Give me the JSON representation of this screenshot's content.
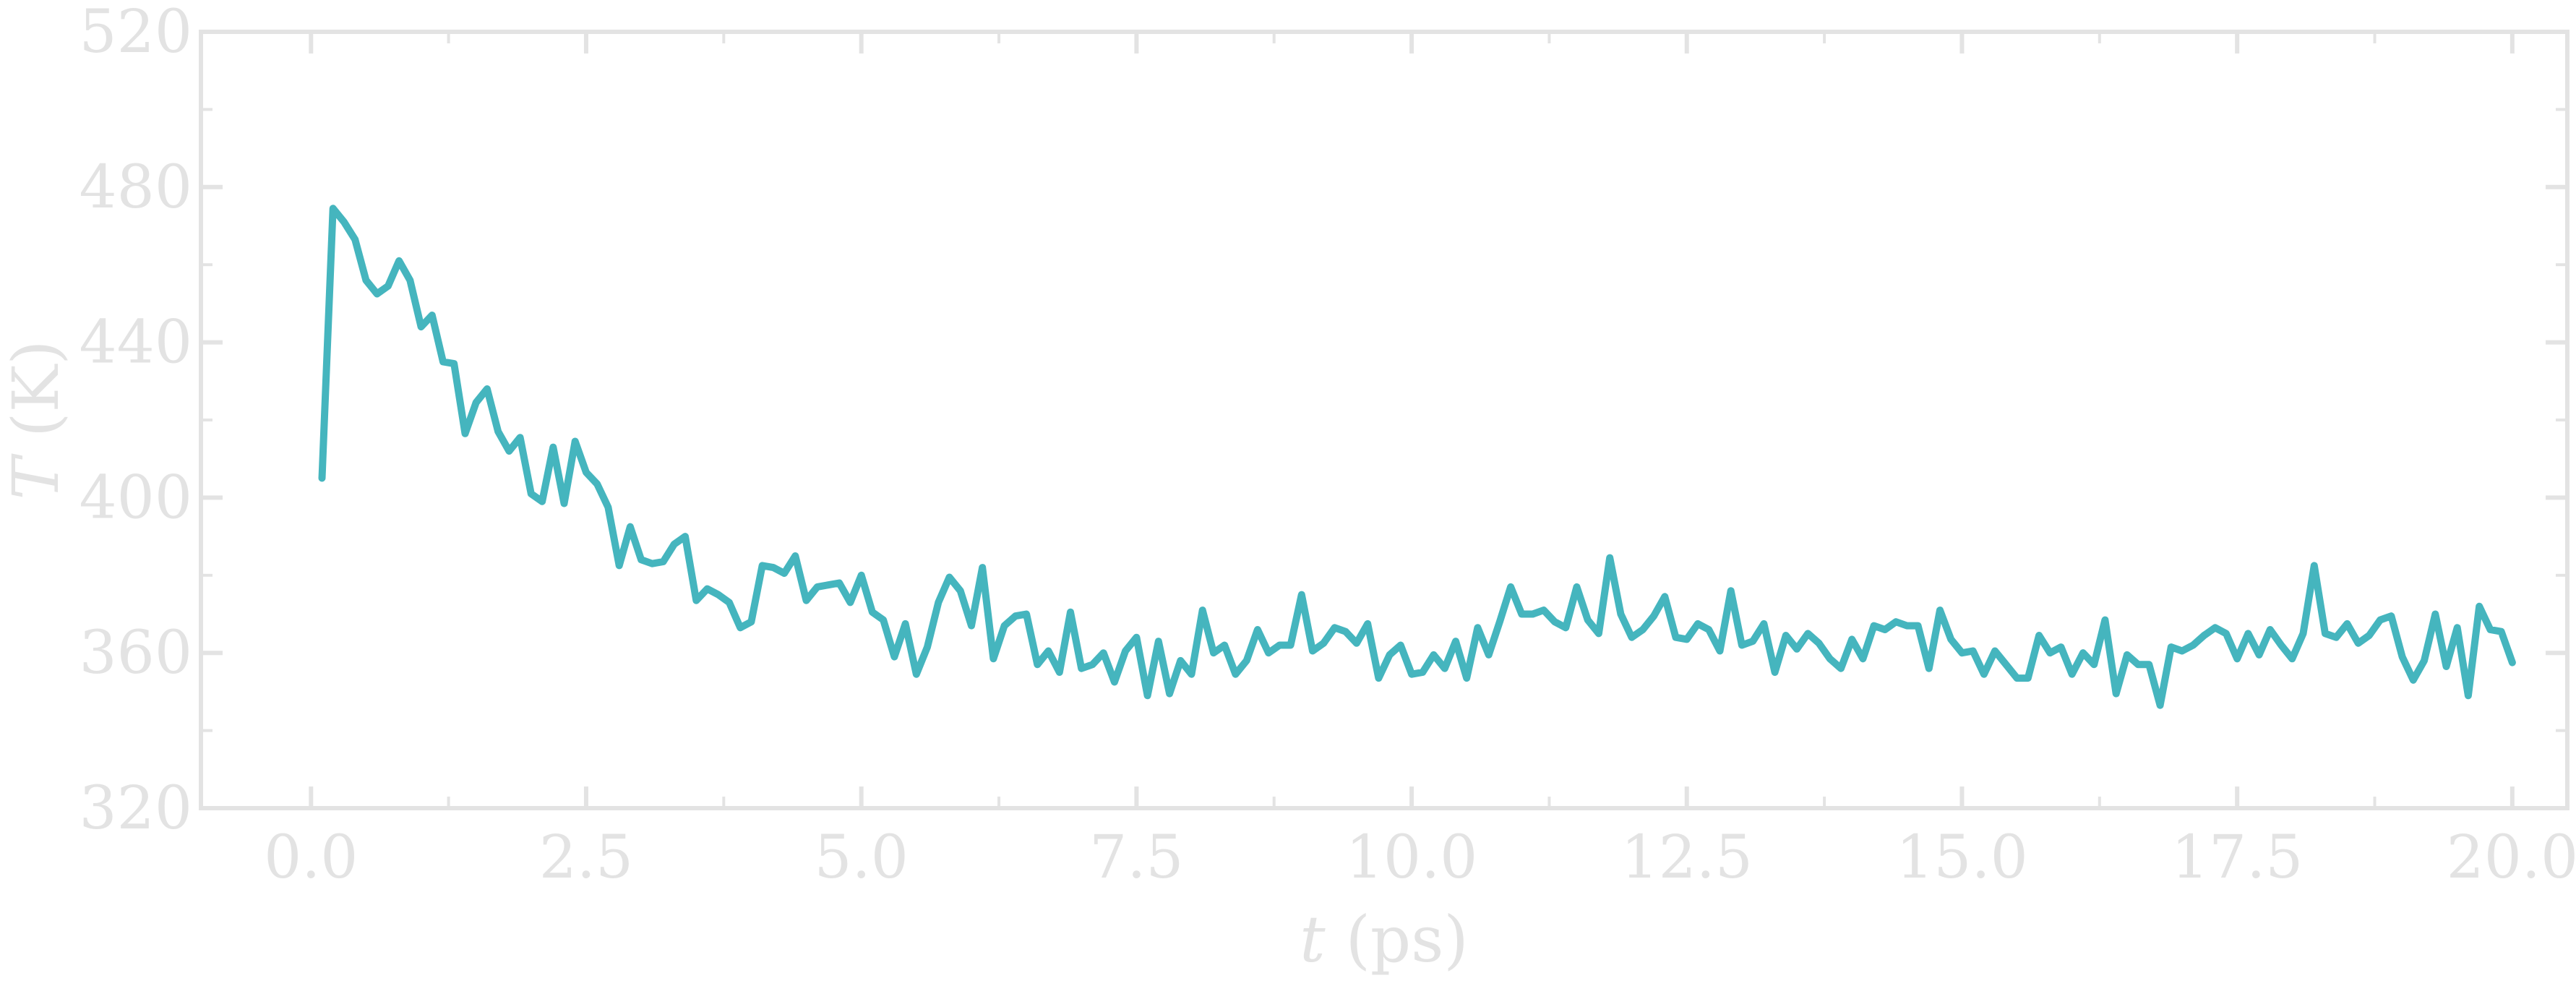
{
  "chart_data": {
    "type": "line",
    "xlabel": "t (ps)",
    "ylabel": "T (K)",
    "xlim": [
      -1.0,
      20.5
    ],
    "ylim": [
      320,
      520
    ],
    "x_ticks": [
      "0.0",
      "2.5",
      "5.0",
      "7.5",
      "10.0",
      "12.5",
      "15.0",
      "17.5",
      "20.0"
    ],
    "y_ticks": [
      "320",
      "360",
      "400",
      "440",
      "480",
      "520"
    ],
    "grid": false,
    "color": "#45b5be",
    "series": [
      {
        "x": [
          0.1,
          0.2,
          0.3,
          0.4,
          0.5,
          0.6,
          0.7,
          0.8,
          0.9,
          1.0,
          1.1,
          1.2,
          1.3,
          1.4,
          1.5,
          1.6,
          1.7,
          1.8,
          1.9,
          2.0,
          2.1,
          2.2,
          2.3,
          2.4,
          2.5,
          2.6,
          2.7,
          2.8,
          2.9,
          3.0,
          3.1,
          3.2,
          3.3,
          3.4,
          3.5,
          3.6,
          3.7,
          3.8,
          3.9,
          4.0,
          4.1,
          4.2,
          4.3,
          4.4,
          4.5,
          4.6,
          4.7,
          4.8,
          4.9,
          5.0,
          5.1,
          5.2,
          5.3,
          5.4,
          5.5,
          5.6,
          5.7,
          5.8,
          5.9,
          6.0,
          6.1,
          6.2,
          6.3,
          6.4,
          6.5,
          6.6,
          6.7,
          6.8,
          6.9,
          7.0,
          7.1,
          7.2,
          7.3,
          7.4,
          7.5,
          7.6,
          7.7,
          7.8,
          7.9,
          8.0,
          8.1,
          8.2,
          8.3,
          8.4,
          8.5,
          8.6,
          8.7,
          8.8,
          8.9,
          9.0,
          9.1,
          9.2,
          9.3,
          9.4,
          9.5,
          9.6,
          9.7,
          9.8,
          9.9,
          10.0,
          10.1,
          10.2,
          10.3,
          10.4,
          10.5,
          10.6,
          10.7,
          10.8,
          10.9,
          11.0,
          11.1,
          11.2,
          11.3,
          11.4,
          11.5,
          11.6,
          11.7,
          11.8,
          11.9,
          12.0,
          12.1,
          12.2,
          12.3,
          12.4,
          12.5,
          12.6,
          12.7,
          12.8,
          12.9,
          13.0,
          13.1,
          13.2,
          13.3,
          13.4,
          13.5,
          13.6,
          13.7,
          13.8,
          13.9,
          14.0,
          14.1,
          14.2,
          14.3,
          14.4,
          14.5,
          14.6,
          14.7,
          14.8,
          14.9,
          15.0,
          15.1,
          15.2,
          15.3,
          15.4,
          15.5,
          15.6,
          15.7,
          15.8,
          15.9,
          16.0,
          16.1,
          16.2,
          16.3,
          16.4,
          16.5,
          16.6,
          16.7,
          16.8,
          16.9,
          17.0,
          17.1,
          17.2,
          17.3,
          17.4,
          17.5,
          17.6,
          17.7,
          17.8,
          17.9,
          18.0,
          18.1,
          18.2,
          18.3,
          18.4,
          18.5,
          18.6,
          18.7,
          18.8,
          18.9,
          19.0,
          19.1,
          19.2,
          19.3,
          19.4,
          19.5,
          19.6,
          19.7,
          19.8,
          19.9,
          20.0
        ],
        "values": [
          405.0,
          474.5,
          471.0,
          466.5,
          456.0,
          452.5,
          454.5,
          461.0,
          456.0,
          444.0,
          447.0,
          435.0,
          434.5,
          416.5,
          424.5,
          428.0,
          417.0,
          412.0,
          415.5,
          401.0,
          399.0,
          413.0,
          398.5,
          414.5,
          406.5,
          403.5,
          397.5,
          382.5,
          392.5,
          384.0,
          383.0,
          383.5,
          388.0,
          390.0,
          373.5,
          376.5,
          375.0,
          373.0,
          366.5,
          368.0,
          382.5,
          382.0,
          380.5,
          385.0,
          373.5,
          377.0,
          377.5,
          378.0,
          373.0,
          380.0,
          370.5,
          368.5,
          359.0,
          367.5,
          354.5,
          361.5,
          373.0,
          379.5,
          376.0,
          367.0,
          382.0,
          358.5,
          367.0,
          369.5,
          370.0,
          357.0,
          360.5,
          355.0,
          370.5,
          356.0,
          357.0,
          360.0,
          352.5,
          360.5,
          364.0,
          349.0,
          363.0,
          349.5,
          358.0,
          354.5,
          371.0,
          360.0,
          362.0,
          354.5,
          358.0,
          366.0,
          360.0,
          362.0,
          362.0,
          375.0,
          360.5,
          362.5,
          366.5,
          365.5,
          362.5,
          367.5,
          353.5,
          359.5,
          362.0,
          354.5,
          355.0,
          359.5,
          356.0,
          363.0,
          353.5,
          366.5,
          359.5,
          368.0,
          377.0,
          370.0,
          370.0,
          371.0,
          368.0,
          366.5,
          377.0,
          368.5,
          365.0,
          384.5,
          370.0,
          364.0,
          366.0,
          369.5,
          374.5,
          364.0,
          363.5,
          367.5,
          366.0,
          360.5,
          376.0,
          362.0,
          363.0,
          367.5,
          355.0,
          364.5,
          361.0,
          365.0,
          362.5,
          358.5,
          356.0,
          363.5,
          358.5,
          367.0,
          366.0,
          368.0,
          367.0,
          367.0,
          356.0,
          371.0,
          363.5,
          360.0,
          360.5,
          354.5,
          360.5,
          357.0,
          353.5,
          353.5,
          364.5,
          360.0,
          361.5,
          354.5,
          360.0,
          357.0,
          368.5,
          349.5,
          359.5,
          357.0,
          357.0,
          346.5,
          361.5,
          360.5,
          362.0,
          364.5,
          366.5,
          365.0,
          358.5,
          365.0,
          359.5,
          366.0,
          362.0,
          358.5,
          365.0,
          382.5,
          365.0,
          364.0,
          367.5,
          362.5,
          364.5,
          368.5,
          369.5,
          359.0,
          353.0,
          358.0,
          370.0,
          356.5,
          366.5,
          349.0,
          372.0,
          366.0,
          365.5,
          357.5
        ]
      }
    ]
  }
}
